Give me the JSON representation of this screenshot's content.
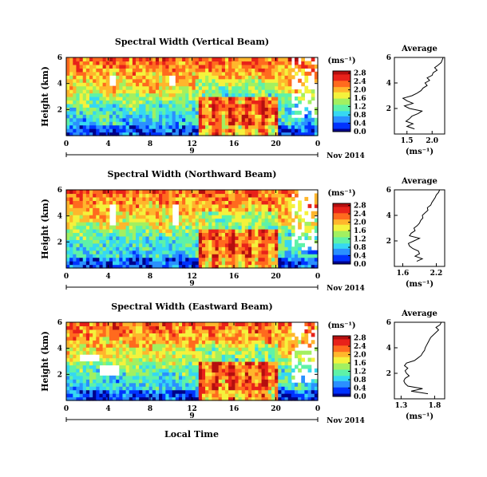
{
  "figure": {
    "x_label": "Local Time",
    "date_label": "Nov 2014",
    "unit_label": "(ms⁻¹)"
  },
  "colors": {
    "colormap": [
      "#00008b",
      "#0033ff",
      "#2a90ff",
      "#36d8f2",
      "#5ef2a8",
      "#a2f060",
      "#f4f23c",
      "#ffb62c",
      "#ff6a1e",
      "#e8221a",
      "#b40f0f"
    ],
    "background": "#ffffff",
    "axis": "#000000"
  },
  "chart_data": [
    {
      "type": "heatmap",
      "title": "Spectral Width (Vertical Beam)",
      "ylabel": "Height (km)",
      "xlim": [
        0,
        24
      ],
      "ylim": [
        0,
        6
      ],
      "x_ticks": [
        "0",
        "4",
        "8",
        "12",
        "16",
        "20",
        "0"
      ],
      "y_ticks": [
        "2",
        "4",
        "6"
      ],
      "day_label": "9",
      "colorbar": {
        "label": "(ms⁻¹)",
        "ticks": [
          "0.0",
          "0.4",
          "0.8",
          "1.2",
          "1.6",
          "2.0",
          "2.4",
          "2.8"
        ],
        "range": [
          0.0,
          2.9
        ]
      },
      "average_profile": {
        "title": "Average",
        "xlabel": "(ms⁻¹)",
        "x_ticks": [
          "1.5",
          "2.0"
        ],
        "xlim": [
          1.25,
          2.25
        ],
        "ylim": [
          0,
          6
        ],
        "height_km": [
          0.4,
          0.6,
          0.8,
          1.0,
          1.2,
          1.4,
          1.6,
          1.8,
          2.0,
          2.2,
          2.4,
          2.6,
          2.8,
          3.0,
          3.2,
          3.4,
          3.6,
          3.8,
          4.0,
          4.2,
          4.4,
          4.6,
          4.8,
          5.0,
          5.2,
          5.4,
          5.6,
          5.8,
          6.0
        ],
        "width_ms": [
          1.65,
          1.5,
          1.62,
          1.48,
          1.55,
          1.6,
          1.72,
          1.8,
          1.55,
          1.45,
          1.62,
          1.5,
          1.42,
          1.6,
          1.7,
          1.78,
          1.82,
          1.9,
          1.86,
          1.95,
          1.9,
          2.0,
          2.02,
          2.1,
          2.05,
          2.12,
          2.18,
          2.2,
          2.22
        ]
      }
    },
    {
      "type": "heatmap",
      "title": "Spectral Width (Northward Beam)",
      "ylabel": "Height (km)",
      "xlim": [
        0,
        24
      ],
      "ylim": [
        0,
        6
      ],
      "x_ticks": [
        "0",
        "4",
        "8",
        "12",
        "16",
        "20",
        "0"
      ],
      "y_ticks": [
        "2",
        "4",
        "6"
      ],
      "day_label": "9",
      "colorbar": {
        "label": "(ms⁻¹)",
        "ticks": [
          "0.0",
          "0.4",
          "0.8",
          "1.2",
          "1.6",
          "2.0",
          "2.4",
          "2.8"
        ],
        "range": [
          0.0,
          2.9
        ]
      },
      "average_profile": {
        "title": "Average",
        "xlabel": "(ms⁻¹)",
        "x_ticks": [
          "1.6",
          "2.2"
        ],
        "xlim": [
          1.45,
          2.35
        ],
        "ylim": [
          0,
          6
        ],
        "height_km": [
          0.4,
          0.6,
          0.8,
          1.0,
          1.2,
          1.4,
          1.6,
          1.8,
          2.0,
          2.2,
          2.4,
          2.6,
          2.8,
          3.0,
          3.2,
          3.4,
          3.6,
          3.8,
          4.0,
          4.2,
          4.4,
          4.6,
          4.8,
          5.0,
          5.2,
          5.4,
          5.6,
          5.8,
          6.0
        ],
        "width_ms": [
          1.85,
          1.95,
          1.82,
          1.9,
          1.88,
          1.78,
          1.72,
          1.7,
          1.8,
          1.9,
          1.72,
          1.75,
          1.82,
          1.8,
          1.86,
          1.9,
          1.92,
          1.96,
          1.95,
          2.0,
          2.05,
          2.04,
          2.1,
          2.12,
          2.15,
          2.18,
          2.2,
          2.24,
          2.26
        ]
      }
    },
    {
      "type": "heatmap",
      "title": "Spectral Width (Eastward Beam)",
      "ylabel": "Height (km)",
      "xlim": [
        0,
        24
      ],
      "ylim": [
        0,
        6
      ],
      "x_ticks": [
        "0",
        "4",
        "8",
        "12",
        "16",
        "20",
        "0"
      ],
      "y_ticks": [
        "2",
        "4",
        "6"
      ],
      "day_label": "9",
      "colorbar": {
        "label": "(ms⁻¹)",
        "ticks": [
          "0.0",
          "0.4",
          "0.8",
          "1.2",
          "1.6",
          "2.0",
          "2.4",
          "2.8"
        ],
        "range": [
          0.0,
          2.9
        ]
      },
      "average_profile": {
        "title": "Average",
        "xlabel": "(ms⁻¹)",
        "x_ticks": [
          "1.3",
          "1.8"
        ],
        "xlim": [
          1.2,
          1.95
        ],
        "ylim": [
          0,
          6
        ],
        "height_km": [
          0.4,
          0.6,
          0.8,
          1.0,
          1.2,
          1.4,
          1.6,
          1.8,
          2.0,
          2.2,
          2.4,
          2.6,
          2.8,
          3.0,
          3.2,
          3.4,
          3.6,
          3.8,
          4.0,
          4.2,
          4.4,
          4.6,
          4.8,
          5.0,
          5.2,
          5.4,
          5.6,
          5.8,
          6.0
        ],
        "width_ms": [
          1.7,
          1.45,
          1.62,
          1.4,
          1.36,
          1.34,
          1.36,
          1.42,
          1.38,
          1.36,
          1.4,
          1.35,
          1.38,
          1.5,
          1.55,
          1.6,
          1.62,
          1.65,
          1.66,
          1.68,
          1.7,
          1.72,
          1.74,
          1.78,
          1.82,
          1.86,
          1.82,
          1.88,
          1.9
        ]
      }
    }
  ]
}
